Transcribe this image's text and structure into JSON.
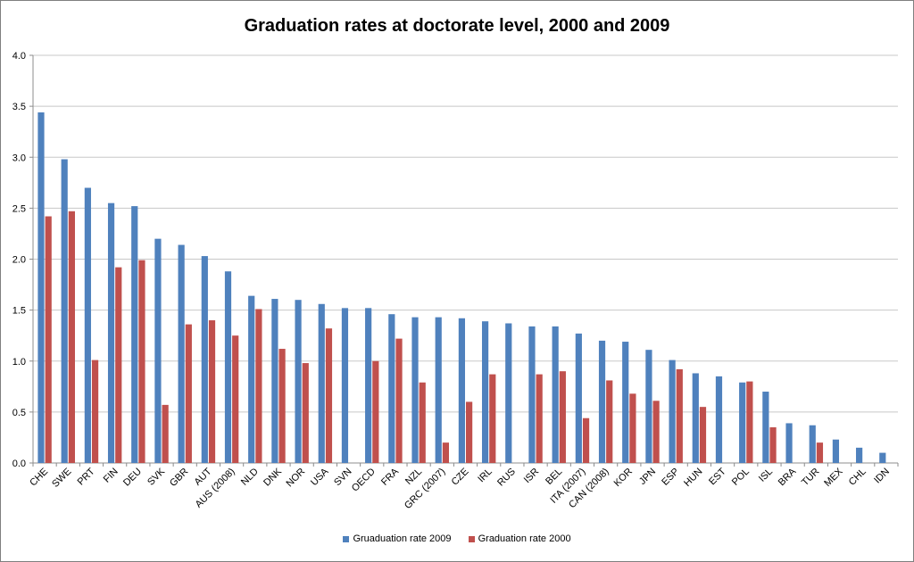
{
  "chart_data": {
    "type": "bar",
    "title": "Graduation rates at doctorate level, 2000 and 2009",
    "xlabel": "",
    "ylabel": "",
    "ylim": [
      0,
      4
    ],
    "yticks": [
      "0.0",
      "0.5",
      "1.0",
      "1.5",
      "2.0",
      "2.5",
      "3.0",
      "3.5",
      "4.0"
    ],
    "grid": true,
    "legend_position": "bottom",
    "categories": [
      "CHE",
      "SWE",
      "PRT",
      "FIN",
      "DEU",
      "SVK",
      "GBR",
      "AUT",
      "AUS (2008)",
      "NLD",
      "DNK",
      "NOR",
      "USA",
      "SVN",
      "OECD",
      "FRA",
      "NZL",
      "GRC (2007)",
      "CZE",
      "IRL",
      "RUS",
      "ISR",
      "BEL",
      "ITA (2007)",
      "CAN (2008)",
      "KOR",
      "JPN",
      "ESP",
      "HUN",
      "EST",
      "POL",
      "ISL",
      "BRA",
      "TUR",
      "MEX",
      "CHL",
      "IDN"
    ],
    "series": [
      {
        "name": "Gruaduation rate 2009",
        "color": "#4f81bd",
        "values": [
          3.44,
          2.98,
          2.7,
          2.55,
          2.52,
          2.2,
          2.14,
          2.03,
          1.88,
          1.64,
          1.61,
          1.6,
          1.56,
          1.52,
          1.52,
          1.46,
          1.43,
          1.43,
          1.42,
          1.39,
          1.37,
          1.34,
          1.34,
          1.27,
          1.2,
          1.19,
          1.11,
          1.01,
          0.88,
          0.85,
          0.79,
          0.7,
          0.39,
          0.37,
          0.23,
          0.15,
          0.1
        ]
      },
      {
        "name": "Graduation rate 2000",
        "color": "#c0504d",
        "values": [
          2.42,
          2.47,
          1.01,
          1.92,
          1.99,
          0.57,
          1.36,
          1.4,
          1.25,
          1.51,
          1.12,
          0.98,
          1.32,
          null,
          1.0,
          1.22,
          0.79,
          0.2,
          0.6,
          0.87,
          null,
          0.87,
          0.9,
          0.44,
          0.81,
          0.68,
          0.61,
          0.92,
          0.55,
          null,
          0.8,
          0.35,
          null,
          0.2,
          null,
          null,
          null
        ]
      }
    ]
  }
}
